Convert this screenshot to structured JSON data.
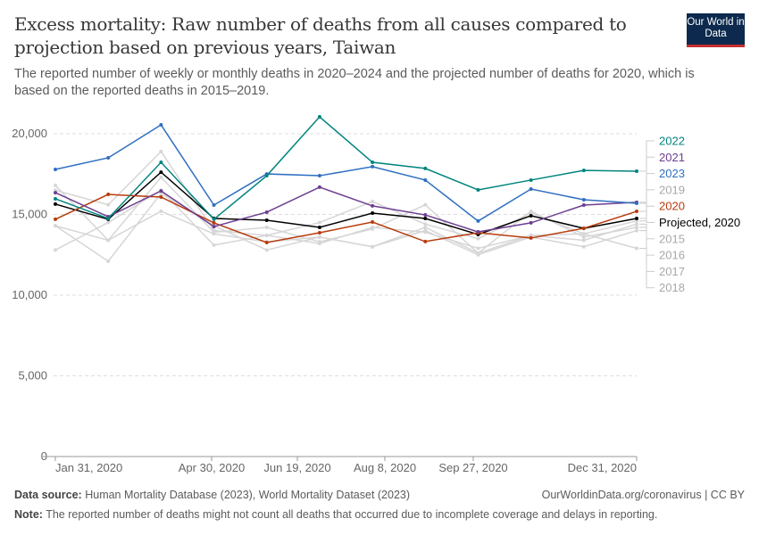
{
  "header": {
    "title": "Excess mortality: Raw number of deaths from all causes compared to projection based on previous years, Taiwan",
    "subtitle": "The reported number of weekly or monthly deaths in 2020–2024 and the projected number of deaths for 2020, which is based on the reported deaths in 2015–2019.",
    "logo": "Our World in Data"
  },
  "footer": {
    "source_label": "Data source:",
    "source": "Human Mortality Database (2023), World Mortality Dataset (2023)",
    "url": "OurWorldinData.org/coronavirus | CC BY",
    "note_label": "Note:",
    "note": "The reported number of deaths might not count all deaths that occurred due to incomplete coverage and delays in reporting."
  },
  "chart_data": {
    "type": "line",
    "ylim": [
      0,
      21500
    ],
    "grid": true,
    "legend": "right",
    "yticks": [
      0,
      5000,
      10000,
      15000,
      20000
    ],
    "ytick_labels": [
      "0",
      "5,000",
      "10,000",
      "15,000",
      "20,000"
    ],
    "xtick_labels": [
      "Jan 31, 2020",
      "Apr 30, 2020",
      "Jun 19, 2020",
      "Aug 8, 2020",
      "Sep 27, 2020",
      "Dec 31, 2020"
    ],
    "x": [
      "Jan 31",
      "Feb 29",
      "Mar 31",
      "Apr 30",
      "May 31",
      "Jun 30",
      "Jul 31",
      "Aug 31",
      "Sep 30",
      "Oct 31",
      "Nov 30",
      "Dec 31"
    ],
    "series": [
      {
        "name": "2015",
        "color": "#d6d6d6",
        "values": [
          14300,
          13400,
          15200,
          13800,
          13300,
          13600,
          13000,
          14200,
          12600,
          13700,
          13400,
          14400
        ]
      },
      {
        "name": "2016",
        "color": "#d6d6d6",
        "values": [
          16800,
          13400,
          17300,
          13900,
          14200,
          13300,
          14100,
          15600,
          12600,
          15200,
          13600,
          14200
        ]
      },
      {
        "name": "2017",
        "color": "#d6d6d6",
        "values": [
          14300,
          12100,
          16300,
          14300,
          12800,
          13600,
          13000,
          14000,
          12500,
          13600,
          13000,
          14000
        ]
      },
      {
        "name": "2018",
        "color": "#d6d6d6",
        "values": [
          12800,
          14500,
          16500,
          13100,
          13700,
          13200,
          14200,
          13900,
          12900,
          13700,
          13800,
          12900
        ]
      },
      {
        "name": "2019",
        "color": "#d6d6d6",
        "values": [
          16500,
          15600,
          18900,
          14000,
          13700,
          14500,
          15800,
          14400,
          13500,
          15100,
          13800,
          14600
        ]
      },
      {
        "name": "Projected, 2020",
        "color": "#000000",
        "values": [
          15640,
          14700,
          17620,
          14750,
          14640,
          14200,
          15080,
          14750,
          13760,
          14920,
          14140,
          14750
        ]
      },
      {
        "name": "2020",
        "color": "#b83b0c",
        "values": [
          14700,
          16240,
          16080,
          14480,
          13260,
          13870,
          14530,
          13320,
          13870,
          13540,
          14140,
          15190
        ]
      },
      {
        "name": "2021",
        "color": "#6d3e91",
        "values": [
          16350,
          14860,
          16460,
          14250,
          15140,
          16690,
          15530,
          14970,
          13920,
          14480,
          15580,
          15750
        ]
      },
      {
        "name": "2023",
        "color": "#2f6fc0",
        "values": [
          17790,
          18510,
          20550,
          15580,
          17510,
          17400,
          17960,
          17130,
          14590,
          16575,
          15910,
          15690
        ]
      },
      {
        "name": "2022",
        "color": "#00847e",
        "values": [
          15970,
          14750,
          18230,
          14700,
          17400,
          21050,
          18230,
          17850,
          16520,
          17130,
          17730,
          17680
        ]
      }
    ],
    "legend_order": [
      "2022",
      "2021",
      "2023",
      "2019",
      "2020",
      "Projected, 2020",
      "2015",
      "2016",
      "2017",
      "2018"
    ]
  }
}
